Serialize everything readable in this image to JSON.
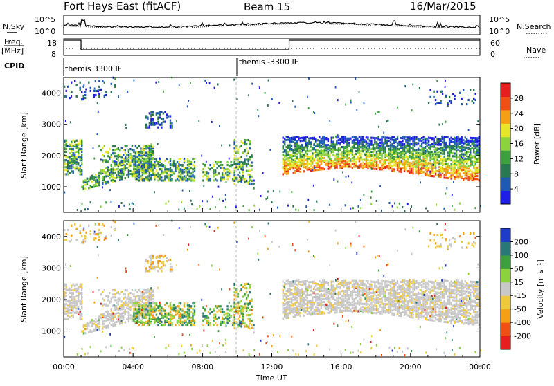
{
  "header": {
    "station": "Fort Hays East (fitACF)",
    "beam": "Beam 15",
    "date": "16/Mar/2015"
  },
  "left_labels": {
    "nsky": "N.Sky",
    "freq_line1": "Freq.",
    "freq_line2": "[MHz]",
    "cpid": "CPID"
  },
  "right_labels": {
    "nsearch": "N.Search",
    "nave": "Nave"
  },
  "noise_panel": {
    "left_ticks": [
      "10^5",
      "10^0"
    ],
    "right_ticks": [
      "10^5",
      "10^0"
    ]
  },
  "freq_panel": {
    "left_ticks": [
      "18",
      "8"
    ],
    "right_ticks": [
      "60",
      "0"
    ]
  },
  "cpid_panel": {
    "labels": [
      {
        "text": "themis 3300 IF",
        "start_hour": 0
      },
      {
        "text": "themis -3300 IF",
        "start_hour": 10
      }
    ]
  },
  "chart_data": [
    {
      "type": "heatmap",
      "name": "power-panel",
      "ylabel": "Slant Range [km]",
      "x_ticks": [
        "00:00",
        "04:00",
        "08:00",
        "12:00",
        "16:00",
        "20:00",
        "00:00"
      ],
      "x_range_hours": [
        0,
        24
      ],
      "y_ticks": [
        1000,
        2000,
        3000,
        4000
      ],
      "y_range_km": [
        180,
        4500
      ],
      "colorbar": {
        "label": "Power [dB]",
        "ticks": [
          "28",
          "24",
          "20",
          "16",
          "12",
          "8",
          "4"
        ],
        "range": [
          0,
          30
        ],
        "colors": [
          "#1e1ee6",
          "#1e5ab4",
          "#287850",
          "#3ca03c",
          "#8cd23c",
          "#e6e628",
          "#f5a014",
          "#f05014",
          "#e61e1e"
        ]
      }
    },
    {
      "type": "heatmap",
      "name": "velocity-panel",
      "ylabel": "Slant Range [km]",
      "xlabel": "Time UT",
      "x_ticks": [
        "00:00",
        "04:00",
        "08:00",
        "12:00",
        "16:00",
        "20:00",
        "00:00"
      ],
      "x_range_hours": [
        0,
        24
      ],
      "y_ticks": [
        1000,
        2000,
        3000,
        4000
      ],
      "y_range_km": [
        180,
        4500
      ],
      "colorbar": {
        "label": "Velocity [m s⁻¹]",
        "ticks": [
          "200",
          "100",
          "50",
          "15",
          "-15",
          "-50",
          "-100",
          "-200"
        ],
        "range": [
          -250,
          250
        ],
        "colors": [
          "#e61e1e",
          "#f05014",
          "#f5a014",
          "#f0c83c",
          "#c8c8c8",
          "#8cd23c",
          "#3ca03c",
          "#287878",
          "#1e3cc8"
        ]
      }
    }
  ]
}
